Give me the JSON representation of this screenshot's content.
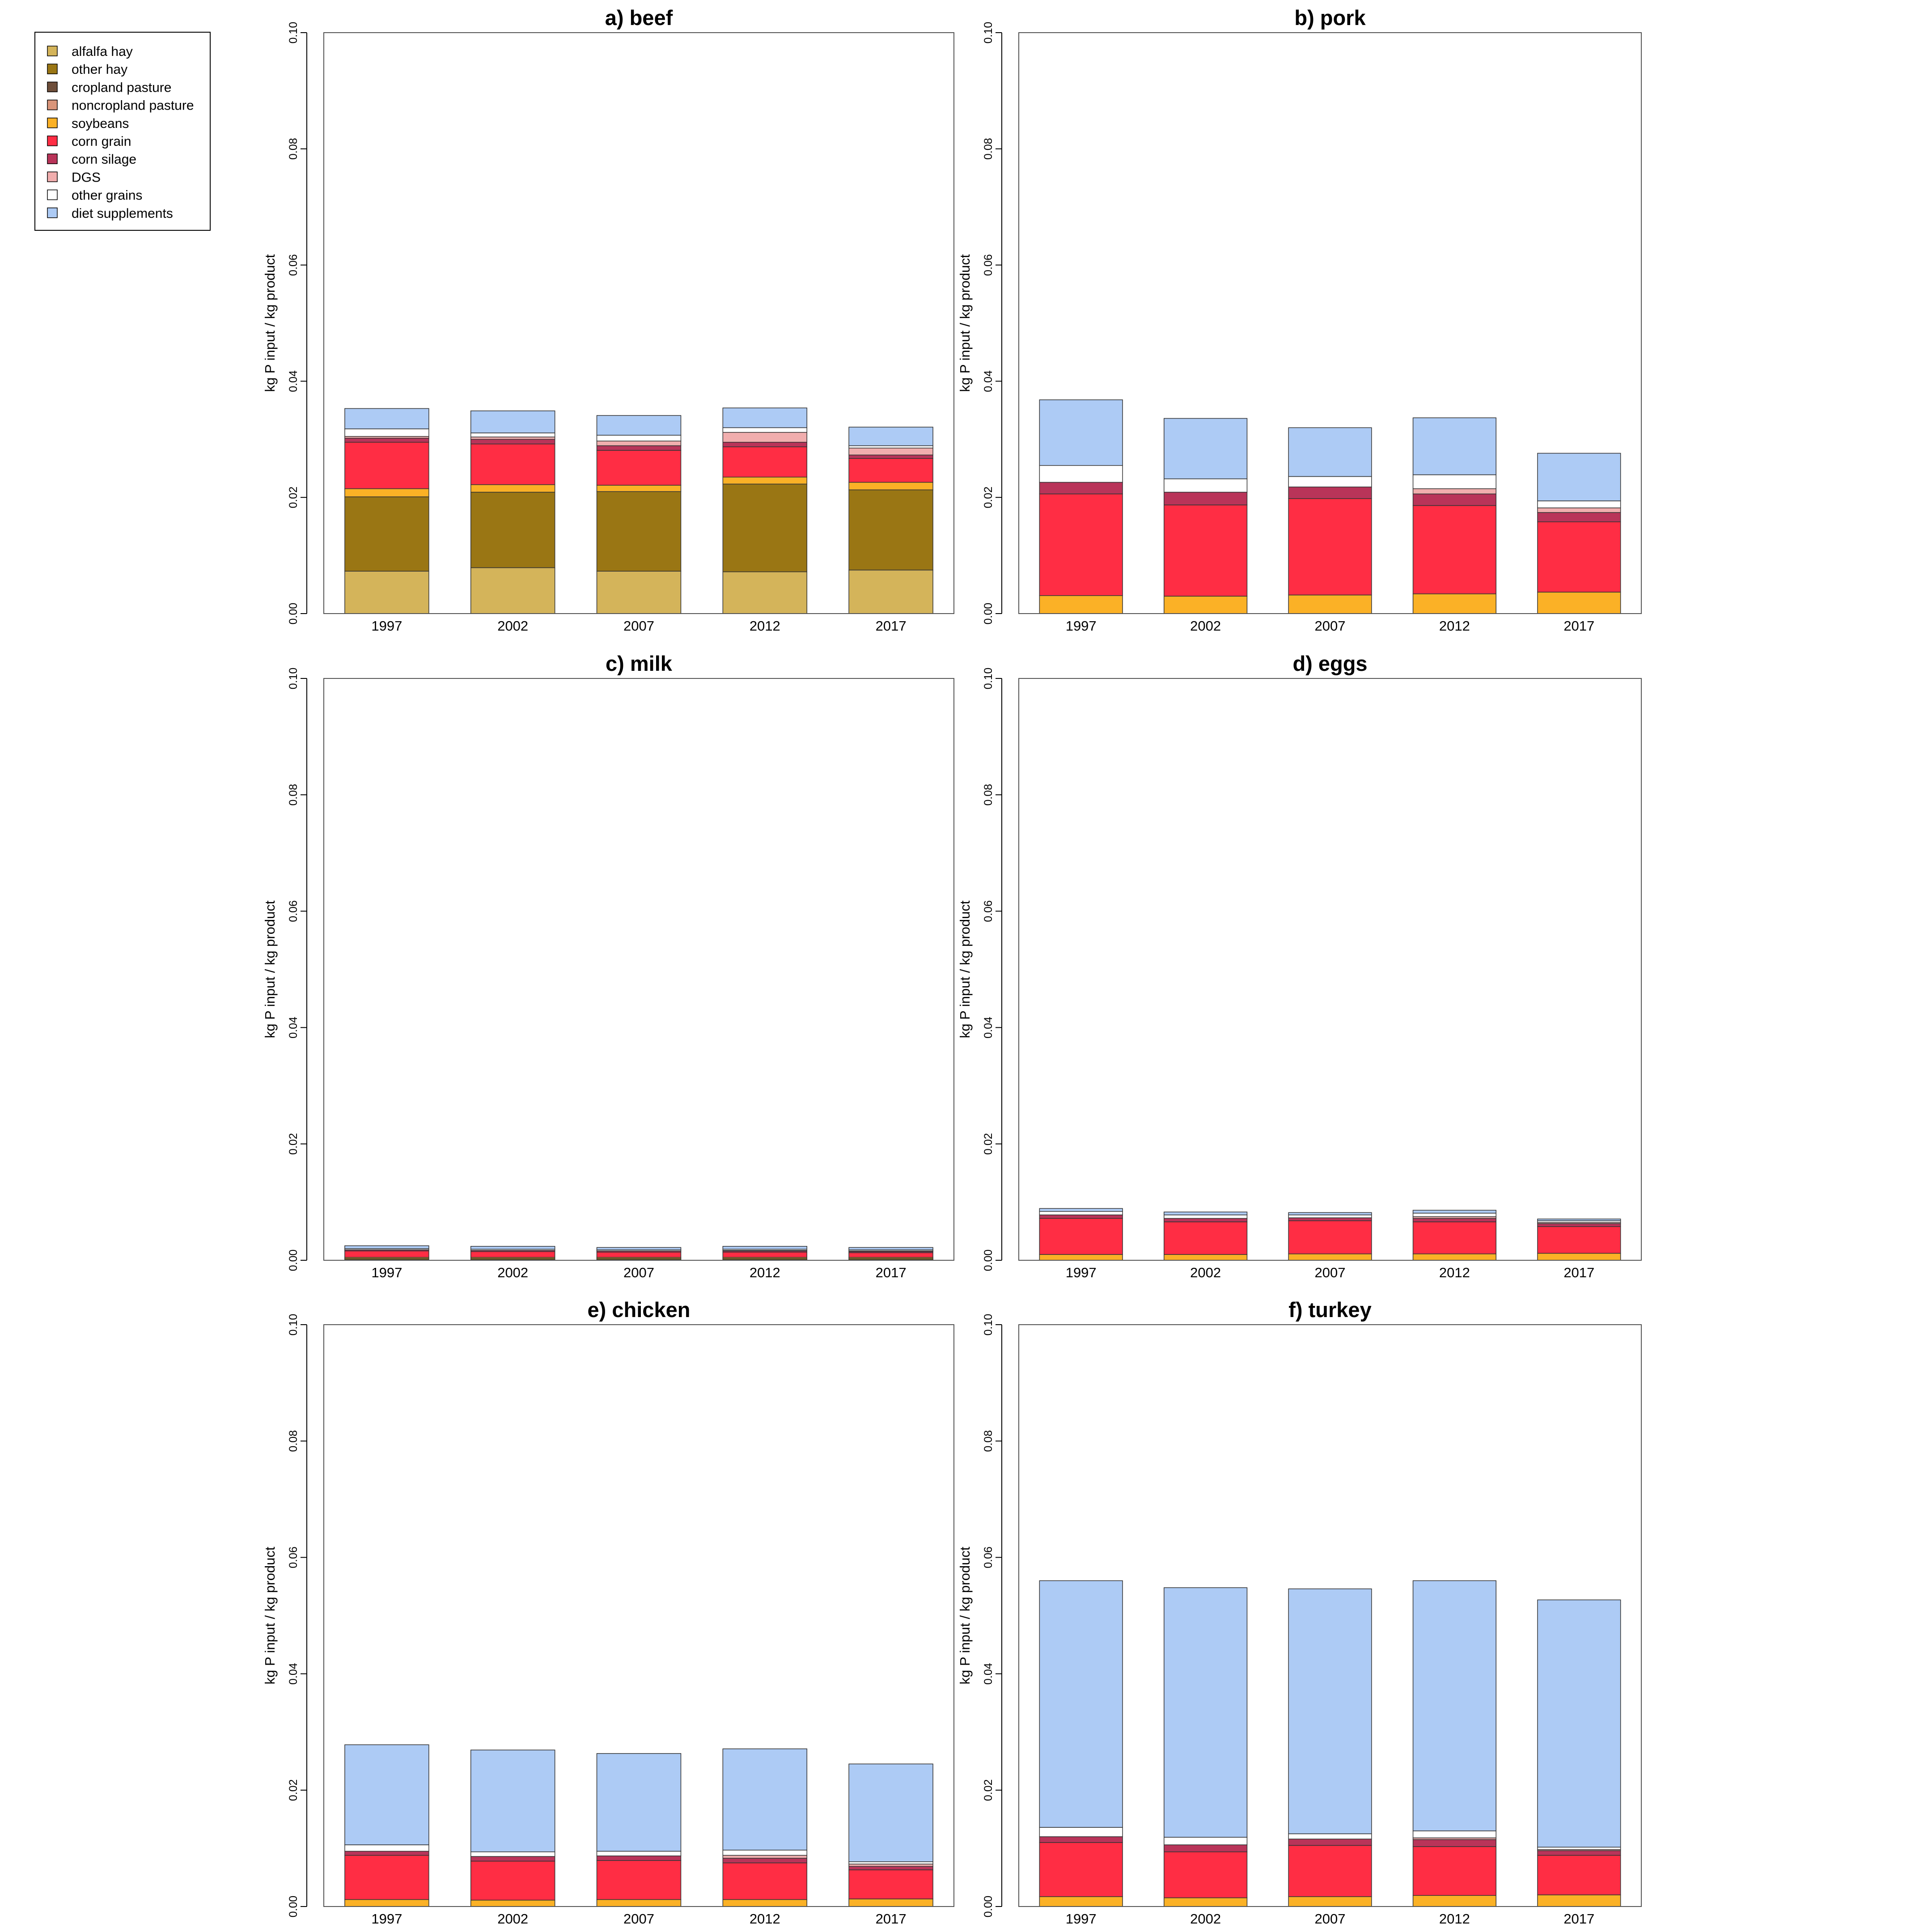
{
  "legend": {
    "entries": [
      {
        "key": "alfalfa_hay",
        "label": "alfalfa hay",
        "color": "#D4B45A"
      },
      {
        "key": "other_hay",
        "label": "other hay",
        "color": "#9A7614"
      },
      {
        "key": "cropland_pasture",
        "label": "cropland pasture",
        "color": "#6E4E3A"
      },
      {
        "key": "noncropland_pasture",
        "label": "noncropland pasture",
        "color": "#D9957A"
      },
      {
        "key": "soybeans",
        "label": "soybeans",
        "color": "#FBB126"
      },
      {
        "key": "corn_grain",
        "label": "corn grain",
        "color": "#FF2D44"
      },
      {
        "key": "corn_silage",
        "label": "corn silage",
        "color": "#B93459"
      },
      {
        "key": "dgs",
        "label": "DGS",
        "color": "#F1AEAE"
      },
      {
        "key": "other_grains",
        "label": "other grains",
        "color": "#FFFFFF"
      },
      {
        "key": "diet_supplements",
        "label": "diet supplements",
        "color": "#ADCBF5"
      }
    ]
  },
  "chart_data": [
    {
      "type": "bar",
      "stacked": true,
      "title": "a) beef",
      "ylabel": "kg P input / kg product",
      "ylim": [
        0,
        0.1
      ],
      "yticks": [
        "0.00",
        "0.02",
        "0.04",
        "0.06",
        "0.08",
        "0.10"
      ],
      "categories": [
        "1997",
        "2002",
        "2007",
        "2012",
        "2017"
      ],
      "series": [
        {
          "key": "alfalfa_hay",
          "name": "alfalfa hay",
          "values": [
            0.0073,
            0.0079,
            0.0073,
            0.0072,
            0.0075
          ]
        },
        {
          "key": "other_hay",
          "name": "other hay",
          "values": [
            0.0128,
            0.013,
            0.0137,
            0.0151,
            0.0138
          ]
        },
        {
          "key": "cropland_pasture",
          "name": "cropland pasture",
          "values": [
            0,
            0,
            0,
            0,
            0
          ]
        },
        {
          "key": "noncropland_pasture",
          "name": "noncropland pasture",
          "values": [
            0,
            0,
            0,
            0,
            0
          ]
        },
        {
          "key": "soybeans",
          "name": "soybeans",
          "values": [
            0.0014,
            0.0013,
            0.0011,
            0.0012,
            0.0013
          ]
        },
        {
          "key": "corn_grain",
          "name": "corn grain",
          "values": [
            0.008,
            0.007,
            0.006,
            0.0052,
            0.0041
          ]
        },
        {
          "key": "corn_silage",
          "name": "corn silage",
          "values": [
            0.0007,
            0.0008,
            0.0008,
            0.0008,
            0.0006
          ]
        },
        {
          "key": "dgs",
          "name": "DGS",
          "values": [
            0.0003,
            0.0004,
            0.0008,
            0.0017,
            0.0012
          ]
        },
        {
          "key": "other_grains",
          "name": "other grains",
          "values": [
            0.0013,
            0.0007,
            0.001,
            0.0008,
            0.0004
          ]
        },
        {
          "key": "diet_supplements",
          "name": "diet supplements",
          "values": [
            0.0035,
            0.0038,
            0.0034,
            0.0034,
            0.0032
          ]
        }
      ]
    },
    {
      "type": "bar",
      "stacked": true,
      "title": "b) pork",
      "ylabel": "kg P input / kg product",
      "ylim": [
        0,
        0.1
      ],
      "yticks": [
        "0.00",
        "0.02",
        "0.04",
        "0.06",
        "0.08",
        "0.10"
      ],
      "categories": [
        "1997",
        "2002",
        "2007",
        "2012",
        "2017"
      ],
      "series": [
        {
          "key": "alfalfa_hay",
          "name": "alfalfa hay",
          "values": [
            0,
            0,
            0,
            0,
            0
          ]
        },
        {
          "key": "other_hay",
          "name": "other hay",
          "values": [
            0,
            0,
            0,
            0,
            0
          ]
        },
        {
          "key": "cropland_pasture",
          "name": "cropland pasture",
          "values": [
            0,
            0,
            0,
            0,
            0
          ]
        },
        {
          "key": "noncropland_pasture",
          "name": "noncropland pasture",
          "values": [
            0,
            0,
            0,
            0,
            0
          ]
        },
        {
          "key": "soybeans",
          "name": "soybeans",
          "values": [
            0.0031,
            0.003,
            0.0032,
            0.0034,
            0.0037
          ]
        },
        {
          "key": "corn_grain",
          "name": "corn grain",
          "values": [
            0.0175,
            0.0157,
            0.0166,
            0.0152,
            0.0121
          ]
        },
        {
          "key": "corn_silage",
          "name": "corn silage",
          "values": [
            0.002,
            0.0022,
            0.002,
            0.002,
            0.0016
          ]
        },
        {
          "key": "dgs",
          "name": "DGS",
          "values": [
            0,
            0,
            0,
            0.0009,
            0.0008
          ]
        },
        {
          "key": "other_grains",
          "name": "other grains",
          "values": [
            0.0029,
            0.0023,
            0.0018,
            0.0024,
            0.0012
          ]
        },
        {
          "key": "diet_supplements",
          "name": "diet supplements",
          "values": [
            0.0113,
            0.0104,
            0.0084,
            0.0098,
            0.0082
          ]
        }
      ]
    },
    {
      "type": "bar",
      "stacked": true,
      "title": "c) milk",
      "ylabel": "kg P input / kg product",
      "ylim": [
        0,
        0.1
      ],
      "yticks": [
        "0.00",
        "0.02",
        "0.04",
        "0.06",
        "0.08",
        "0.10"
      ],
      "categories": [
        "1997",
        "2002",
        "2007",
        "2012",
        "2017"
      ],
      "series": [
        {
          "key": "alfalfa_hay",
          "name": "alfalfa hay",
          "values": [
            0.0001,
            0.0001,
            0.0001,
            0.0001,
            0.0001
          ]
        },
        {
          "key": "other_hay",
          "name": "other hay",
          "values": [
            0.0002,
            0.0002,
            0.0002,
            0.0002,
            0.0002
          ]
        },
        {
          "key": "cropland_pasture",
          "name": "cropland pasture",
          "values": [
            0,
            0,
            0,
            0,
            0
          ]
        },
        {
          "key": "noncropland_pasture",
          "name": "noncropland pasture",
          "values": [
            0,
            0,
            0,
            0,
            0
          ]
        },
        {
          "key": "soybeans",
          "name": "soybeans",
          "values": [
            0.0002,
            0.0002,
            0.0002,
            0.0002,
            0.0002
          ]
        },
        {
          "key": "corn_grain",
          "name": "corn grain",
          "values": [
            0.0011,
            0.001,
            0.0009,
            0.0009,
            0.0008
          ]
        },
        {
          "key": "corn_silage",
          "name": "corn silage",
          "values": [
            0.0002,
            0.0002,
            0.0002,
            0.0002,
            0.0002
          ]
        },
        {
          "key": "dgs",
          "name": "DGS",
          "values": [
            0,
            0,
            0,
            0.0001,
            0.0001
          ]
        },
        {
          "key": "other_grains",
          "name": "other grains",
          "values": [
            0.0002,
            0.0002,
            0.0002,
            0.0002,
            0.0002
          ]
        },
        {
          "key": "diet_supplements",
          "name": "diet supplements",
          "values": [
            0.0005,
            0.0005,
            0.0004,
            0.0005,
            0.0004
          ]
        }
      ]
    },
    {
      "type": "bar",
      "stacked": true,
      "title": "d) eggs",
      "ylabel": "kg P input / kg product",
      "ylim": [
        0,
        0.1
      ],
      "yticks": [
        "0.00",
        "0.02",
        "0.04",
        "0.06",
        "0.08",
        "0.10"
      ],
      "categories": [
        "1997",
        "2002",
        "2007",
        "2012",
        "2017"
      ],
      "series": [
        {
          "key": "alfalfa_hay",
          "name": "alfalfa hay",
          "values": [
            0,
            0,
            0,
            0,
            0
          ]
        },
        {
          "key": "other_hay",
          "name": "other hay",
          "values": [
            0,
            0,
            0,
            0,
            0
          ]
        },
        {
          "key": "cropland_pasture",
          "name": "cropland pasture",
          "values": [
            0,
            0,
            0,
            0,
            0
          ]
        },
        {
          "key": "noncropland_pasture",
          "name": "noncropland pasture",
          "values": [
            0,
            0,
            0,
            0,
            0
          ]
        },
        {
          "key": "soybeans",
          "name": "soybeans",
          "values": [
            0.001,
            0.001,
            0.0011,
            0.0011,
            0.0012
          ]
        },
        {
          "key": "corn_grain",
          "name": "corn grain",
          "values": [
            0.0062,
            0.0056,
            0.0057,
            0.0055,
            0.0046
          ]
        },
        {
          "key": "corn_silage",
          "name": "corn silage",
          "values": [
            0.0006,
            0.0006,
            0.0005,
            0.0006,
            0.0005
          ]
        },
        {
          "key": "dgs",
          "name": "DGS",
          "values": [
            0,
            0,
            0,
            0.0003,
            0.0002
          ]
        },
        {
          "key": "other_grains",
          "name": "other grains",
          "values": [
            0.0006,
            0.0006,
            0.0005,
            0.0006,
            0.0003
          ]
        },
        {
          "key": "diet_supplements",
          "name": "diet supplements",
          "values": [
            0.0005,
            0.0005,
            0.0004,
            0.0005,
            0.0003
          ]
        }
      ]
    },
    {
      "type": "bar",
      "stacked": true,
      "title": "e) chicken",
      "ylabel": "kg P input / kg product",
      "ylim": [
        0,
        0.1
      ],
      "yticks": [
        "0.00",
        "0.02",
        "0.04",
        "0.06",
        "0.08",
        "0.10"
      ],
      "categories": [
        "1997",
        "2002",
        "2007",
        "2012",
        "2017"
      ],
      "series": [
        {
          "key": "alfalfa_hay",
          "name": "alfalfa hay",
          "values": [
            0,
            0,
            0,
            0,
            0
          ]
        },
        {
          "key": "other_hay",
          "name": "other hay",
          "values": [
            0,
            0,
            0,
            0,
            0
          ]
        },
        {
          "key": "cropland_pasture",
          "name": "cropland pasture",
          "values": [
            0,
            0,
            0,
            0,
            0
          ]
        },
        {
          "key": "noncropland_pasture",
          "name": "noncropland pasture",
          "values": [
            0,
            0,
            0,
            0,
            0
          ]
        },
        {
          "key": "soybeans",
          "name": "soybeans",
          "values": [
            0.0012,
            0.0011,
            0.0012,
            0.0012,
            0.0013
          ]
        },
        {
          "key": "corn_grain",
          "name": "corn grain",
          "values": [
            0.0076,
            0.0067,
            0.0067,
            0.0063,
            0.005
          ]
        },
        {
          "key": "corn_silage",
          "name": "corn silage",
          "values": [
            0.0007,
            0.0008,
            0.0008,
            0.0008,
            0.0006
          ]
        },
        {
          "key": "dgs",
          "name": "DGS",
          "values": [
            0,
            0,
            0,
            0.0005,
            0.0004
          ]
        },
        {
          "key": "other_grains",
          "name": "other grains",
          "values": [
            0.0011,
            0.0008,
            0.0008,
            0.0009,
            0.0004
          ]
        },
        {
          "key": "diet_supplements",
          "name": "diet supplements",
          "values": [
            0.0172,
            0.0175,
            0.0168,
            0.0174,
            0.0168
          ]
        }
      ]
    },
    {
      "type": "bar",
      "stacked": true,
      "title": "f) turkey",
      "ylabel": "kg P input / kg product",
      "ylim": [
        0,
        0.1
      ],
      "yticks": [
        "0.00",
        "0.02",
        "0.04",
        "0.06",
        "0.08",
        "0.10"
      ],
      "categories": [
        "1997",
        "2002",
        "2007",
        "2012",
        "2017"
      ],
      "series": [
        {
          "key": "alfalfa_hay",
          "name": "alfalfa hay",
          "values": [
            0,
            0,
            0,
            0,
            0
          ]
        },
        {
          "key": "other_hay",
          "name": "other hay",
          "values": [
            0,
            0,
            0,
            0,
            0
          ]
        },
        {
          "key": "cropland_pasture",
          "name": "cropland pasture",
          "values": [
            0,
            0,
            0,
            0,
            0
          ]
        },
        {
          "key": "noncropland_pasture",
          "name": "noncropland pasture",
          "values": [
            0,
            0,
            0,
            0,
            0
          ]
        },
        {
          "key": "soybeans",
          "name": "soybeans",
          "values": [
            0.0017,
            0.0015,
            0.0017,
            0.0019,
            0.002
          ]
        },
        {
          "key": "corn_grain",
          "name": "corn grain",
          "values": [
            0.0093,
            0.0079,
            0.0088,
            0.0084,
            0.0068
          ]
        },
        {
          "key": "corn_silage",
          "name": "corn silage",
          "values": [
            0.001,
            0.0012,
            0.0011,
            0.0012,
            0.0008
          ]
        },
        {
          "key": "dgs",
          "name": "DGS",
          "values": [
            0,
            0,
            0,
            0.0003,
            0.0002
          ]
        },
        {
          "key": "other_grains",
          "name": "other grains",
          "values": [
            0.0016,
            0.0013,
            0.0009,
            0.0012,
            0.0004
          ]
        },
        {
          "key": "diet_supplements",
          "name": "diet supplements",
          "values": [
            0.0424,
            0.0429,
            0.0421,
            0.043,
            0.0425
          ]
        }
      ]
    }
  ]
}
